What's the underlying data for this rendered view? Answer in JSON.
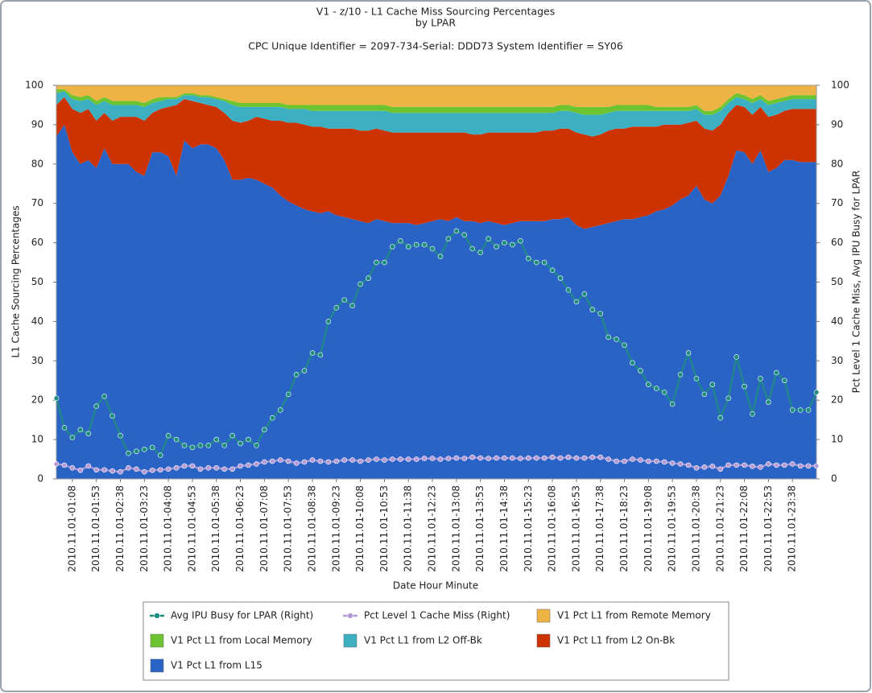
{
  "chart_data": {
    "type": "area",
    "title": [
      "V1 - z/10 - L1 Cache Miss Sourcing Percentages",
      "by LPAR"
    ],
    "subtitle": "CPC Unique Identifier = 2097-734-Serial: DDD73 System Identifier = SY06",
    "xlabel": "Date Hour Minute",
    "ylabel": "L1 Cache Sourcing Percentages",
    "y2label": "Pct Level 1 Cache Miss, Avg IPU Busy for LPAR",
    "ylim": [
      0,
      100
    ],
    "yticks": [
      0,
      10,
      20,
      30,
      40,
      50,
      60,
      70,
      80,
      90,
      100
    ],
    "y2lim": [
      0,
      100
    ],
    "y2ticks": [
      0,
      10,
      20,
      30,
      40,
      50,
      60,
      70,
      80,
      90,
      100
    ],
    "stacked": true,
    "categories": [
      null,
      null,
      "2010.11.01-01:08",
      null,
      null,
      "2010.11.01-01:53",
      null,
      null,
      "2010.11.01-02:38",
      null,
      null,
      "2010.11.01-03:23",
      null,
      null,
      "2010.11.01-04:08",
      null,
      null,
      "2010.11.01-04:53",
      null,
      null,
      "2010.11.01-05:38",
      null,
      null,
      "2010.11.01-06:23",
      null,
      null,
      "2010.11.01-07:08",
      null,
      null,
      "2010.11.01-07:53",
      null,
      null,
      "2010.11.01-08:38",
      null,
      null,
      "2010.11.01-09:23",
      null,
      null,
      "2010.11.01-10:08",
      null,
      null,
      "2010.11.01-10:53",
      null,
      null,
      "2010.11.01-11:38",
      null,
      null,
      "2010.11.01-12:23",
      null,
      null,
      "2010.11.01-13:08",
      null,
      null,
      "2010.11.01-13:53",
      null,
      null,
      "2010.11.01-14:38",
      null,
      null,
      "2010.11.01-15:23",
      null,
      null,
      "2010.11.01-16:08",
      null,
      null,
      "2010.11.01-16:53",
      null,
      null,
      "2010.11.01-17:38",
      null,
      null,
      "2010.11.01-18:23",
      null,
      null,
      "2010.11.01-19:08",
      null,
      null,
      "2010.11.01-19:53",
      null,
      null,
      "2010.11.01-20:38",
      null,
      null,
      "2010.11.01-21:23",
      null,
      null,
      "2010.11.01-22:08",
      null,
      null,
      "2010.11.01-22:53",
      null,
      null,
      "2010.11.01-23:38",
      null,
      null,
      null
    ],
    "series": [
      {
        "name": "Avg IPU Busy for LPAR (Right)",
        "type": "line",
        "axis": "y2",
        "color": "#1f8c80",
        "values": [
          20.5,
          13,
          10.5,
          12.5,
          11.5,
          18.5,
          21,
          16,
          11,
          6.5,
          7,
          7.5,
          8,
          6,
          11,
          10,
          8.5,
          8,
          8.5,
          8.5,
          10,
          8.5,
          11,
          9,
          10,
          8.5,
          12.5,
          15.5,
          17.5,
          21.5,
          26.5,
          27.5,
          32,
          31.5,
          40,
          43.5,
          45.5,
          44,
          49.5,
          51,
          55,
          55,
          59,
          60.5,
          59,
          59.5,
          59.5,
          58.5,
          56.5,
          61,
          63,
          62,
          58.5,
          57.5,
          61,
          59,
          60,
          59.5,
          60.5,
          56,
          55,
          55,
          53,
          51,
          48,
          45,
          47,
          43,
          42,
          36,
          35.5,
          34,
          29.5,
          27.5,
          24,
          23,
          22,
          19,
          26.5,
          32,
          25.5,
          21.5,
          24,
          15.5,
          20.5,
          31,
          23.5,
          16.5,
          25.5,
          19.5,
          27,
          25,
          17.5,
          17.5,
          17.5,
          22
        ]
      },
      {
        "name": "Pct Level 1 Cache Miss (Right)",
        "type": "line",
        "axis": "y2",
        "color": "#b59bd6",
        "values": [
          3.8,
          3.5,
          2.8,
          2.2,
          3.3,
          2.3,
          2.3,
          2,
          1.8,
          2.8,
          2.5,
          1.8,
          2.2,
          2.3,
          2.5,
          2.8,
          3.3,
          3.3,
          2.5,
          2.8,
          2.8,
          2.5,
          2.5,
          3.3,
          3.5,
          3.8,
          4.3,
          4.5,
          4.8,
          4.5,
          4,
          4.3,
          4.8,
          4.5,
          4.3,
          4.5,
          4.8,
          4.8,
          4.5,
          4.8,
          5,
          4.8,
          5,
          5,
          5,
          5,
          5.2,
          5.2,
          5,
          5.2,
          5.3,
          5.2,
          5.5,
          5.3,
          5.2,
          5.3,
          5.3,
          5.3,
          5.2,
          5.3,
          5.3,
          5.3,
          5.5,
          5.3,
          5.5,
          5.3,
          5.3,
          5.5,
          5.5,
          5,
          4.5,
          4.5,
          5,
          4.8,
          4.5,
          4.5,
          4.3,
          4,
          3.8,
          3.5,
          2.8,
          3,
          3.2,
          2.5,
          3.5,
          3.5,
          3.5,
          3.2,
          3,
          3.8,
          3.5,
          3.5,
          3.8,
          3.3,
          3.3,
          3.3
        ]
      },
      {
        "name": "V1 Pct L1 from Remote Memory",
        "type": "area",
        "color": "#eeb345",
        "values": [
          1,
          1,
          2.5,
          3,
          2.5,
          4,
          3,
          4,
          4,
          4,
          4,
          4.5,
          3.5,
          3,
          3,
          3,
          2,
          2,
          2.5,
          2.5,
          3,
          3.5,
          4,
          4.5,
          4.5,
          4.5,
          4.5,
          4.5,
          4.5,
          5,
          5,
          5,
          5,
          5,
          5,
          5,
          5,
          5,
          5,
          5,
          5,
          5,
          5.5,
          5.5,
          5.5,
          5.5,
          5.5,
          5.5,
          5.5,
          5.5,
          5.5,
          5.5,
          5.5,
          5.5,
          5.5,
          5.5,
          5.5,
          5.5,
          5.5,
          5.5,
          5.5,
          5.5,
          5.5,
          5,
          5,
          5.5,
          5.5,
          5.5,
          5.5,
          5.5,
          5,
          5,
          5,
          5,
          5,
          5.5,
          5.5,
          5.5,
          5.5,
          5.5,
          5,
          6.5,
          6.5,
          5.5,
          3.5,
          2,
          2.5,
          3.5,
          2.5,
          4,
          3.5,
          3,
          2.5,
          2.5,
          2.5,
          2.5
        ]
      },
      {
        "name": "V1 Pct L1 from Local Memory",
        "type": "area",
        "color": "#6cc431",
        "values": [
          1,
          0.5,
          1,
          1,
          1,
          1,
          1,
          1,
          1,
          1,
          1,
          1,
          1,
          1,
          0.5,
          0.5,
          0.5,
          0.5,
          0.5,
          0.5,
          0.5,
          0.5,
          1,
          1,
          1,
          1,
          1,
          1,
          1,
          1,
          1,
          1,
          1.5,
          1.5,
          1.5,
          1.5,
          1.5,
          1.5,
          1.5,
          1.5,
          1.5,
          1.5,
          1.5,
          1.5,
          1.5,
          1.5,
          1.5,
          1.5,
          1.5,
          1.5,
          1.5,
          1.5,
          1.5,
          1.5,
          1.5,
          1.5,
          1.5,
          1.5,
          1.5,
          1.5,
          1.5,
          1.5,
          1.5,
          1.5,
          1.5,
          1.5,
          2,
          2,
          2,
          1.5,
          1.5,
          1.5,
          1.5,
          1.5,
          1.5,
          1,
          1,
          1,
          1,
          1,
          1,
          1,
          1,
          1,
          1,
          1,
          1,
          1,
          1,
          1,
          1,
          1,
          1,
          1,
          1,
          1
        ]
      },
      {
        "name": "V1 Pct L1 from L2 Off-Bk",
        "type": "area",
        "color": "#3cb0c2",
        "values": [
          3,
          1.5,
          2.5,
          3,
          2.5,
          4,
          3,
          4,
          3,
          3,
          3,
          3.5,
          2.5,
          2,
          2,
          1.5,
          1,
          1.5,
          1.5,
          2,
          2,
          3,
          4,
          4,
          3.5,
          2.5,
          3,
          3.5,
          3.5,
          3.5,
          3.5,
          4,
          4,
          4,
          4.5,
          4.5,
          4.5,
          4.5,
          5,
          5,
          4.5,
          5,
          5,
          5,
          5,
          5,
          5,
          5,
          5,
          5,
          5,
          5,
          5.5,
          5.5,
          5,
          5,
          5,
          5,
          5,
          5,
          5,
          4.5,
          4.5,
          4.5,
          4.5,
          5,
          5,
          5.5,
          5,
          4.5,
          4.5,
          4.5,
          4,
          4,
          4,
          4,
          3.5,
          3.5,
          3.5,
          3,
          3,
          3.5,
          4,
          3.5,
          2.5,
          2,
          2,
          3,
          2,
          3,
          3,
          2.5,
          2.5,
          2.5,
          2.5,
          2.5
        ]
      },
      {
        "name": "V1 Pct L1 from L2 On-Bk",
        "type": "area",
        "color": "#cc3300",
        "values": [
          8,
          7,
          11,
          13,
          13,
          12,
          9,
          11,
          12,
          12,
          14,
          14,
          10,
          11,
          12.5,
          18,
          10.5,
          12,
          10.5,
          10,
          10.5,
          12,
          15,
          14.5,
          14.5,
          16,
          16.5,
          17,
          19,
          20,
          21,
          21.5,
          21.5,
          22,
          21,
          22,
          22.5,
          23,
          23,
          23.5,
          23,
          23,
          23,
          23,
          23,
          23.5,
          23,
          22.5,
          22,
          22.5,
          21.5,
          22.5,
          22,
          22.5,
          22.5,
          23,
          23.5,
          23,
          22.5,
          22.5,
          22.5,
          23,
          22.5,
          23,
          22.5,
          23.5,
          24,
          23,
          23,
          23.5,
          23.5,
          23,
          23.5,
          23,
          22.5,
          21.5,
          21.5,
          20.5,
          19,
          18.5,
          16.5,
          18,
          18.5,
          18,
          16,
          11.5,
          11.5,
          12.5,
          11,
          14,
          13.5,
          12.5,
          13,
          13.5,
          13.5,
          13.5
        ]
      },
      {
        "name": "V1 Pct L1 from L15",
        "type": "area",
        "color": "#2a63c6",
        "values": [
          87,
          90,
          83,
          80,
          81,
          79,
          84,
          80,
          80,
          80,
          78,
          77,
          83,
          83,
          82,
          77,
          86,
          84,
          85,
          85,
          84,
          81,
          76,
          76,
          76.5,
          76,
          75,
          74,
          72,
          70.5,
          69.5,
          68.5,
          68,
          67.5,
          68,
          67,
          66.5,
          66,
          65.5,
          65,
          66,
          65.5,
          65,
          65,
          65,
          64.5,
          65,
          65.5,
          66,
          65.5,
          66.5,
          65.5,
          65.5,
          65,
          65.5,
          65,
          64.5,
          65,
          65.5,
          65.5,
          65.5,
          65.5,
          66,
          66,
          66.5,
          64.5,
          63.5,
          64,
          64.5,
          65,
          65.5,
          66,
          66,
          66.5,
          67,
          68,
          68.5,
          69.5,
          71,
          72,
          74.5,
          71,
          70,
          72,
          77,
          83.5,
          83,
          80,
          83.5,
          78,
          79,
          81,
          81,
          80.5,
          80.5,
          80.5
        ]
      }
    ]
  }
}
